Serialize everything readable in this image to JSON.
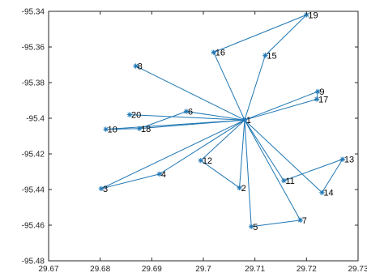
{
  "chart_data": {
    "type": "scatter",
    "title": "",
    "xlabel": "",
    "ylabel": "",
    "xlim": [
      29.67,
      29.73
    ],
    "ylim": [
      -95.48,
      -95.34
    ],
    "xticks": [
      29.67,
      29.68,
      29.69,
      29.7,
      29.71,
      29.72,
      29.73
    ],
    "yticks": [
      -95.48,
      -95.46,
      -95.44,
      -95.42,
      -95.4,
      -95.38,
      -95.36,
      -95.34
    ],
    "xtick_labels": [
      "29.67",
      "29.68",
      "29.69",
      "29.7",
      "29.71",
      "29.72",
      "29.73"
    ],
    "ytick_labels": [
      "-95.48",
      "-95.46",
      "-95.44",
      "-95.42",
      "-95.4",
      "-95.38",
      "-95.36",
      "-95.34"
    ],
    "grid": false,
    "marker": "*",
    "colors": {
      "line": "#1f77b4",
      "marker": "#1f77b4",
      "axes": "#262626"
    },
    "nodes": [
      {
        "id": "1",
        "x": 29.708,
        "y": -95.401
      },
      {
        "id": "2",
        "x": 29.707,
        "y": -95.439
      },
      {
        "id": "4",
        "x": 29.6915,
        "y": -95.4313
      },
      {
        "id": "5",
        "x": 29.7093,
        "y": -95.4608
      },
      {
        "id": "6",
        "x": 29.6967,
        "y": -95.3962
      },
      {
        "id": "7",
        "x": 29.7188,
        "y": -95.4572
      },
      {
        "id": "8",
        "x": 29.6869,
        "y": -95.3707
      },
      {
        "id": "9",
        "x": 29.7222,
        "y": -95.385
      },
      {
        "id": "10",
        "x": 29.6811,
        "y": -95.4062
      },
      {
        "id": "11",
        "x": 29.7156,
        "y": -95.435
      },
      {
        "id": "12",
        "x": 29.6995,
        "y": -95.4237
      },
      {
        "id": "13",
        "x": 29.727,
        "y": -95.423
      },
      {
        "id": "14",
        "x": 29.723,
        "y": -95.4417
      },
      {
        "id": "15",
        "x": 29.712,
        "y": -95.3647
      },
      {
        "id": "16",
        "x": 29.702,
        "y": -95.363
      },
      {
        "id": "17",
        "x": 29.722,
        "y": -95.3893
      },
      {
        "id": "18",
        "x": 29.6876,
        "y": -95.4058
      },
      {
        "id": "19",
        "x": 29.72,
        "y": -95.342
      },
      {
        "id": "20",
        "x": 29.6857,
        "y": -95.398
      },
      {
        "id": "3",
        "x": 29.6802,
        "y": -95.4395
      }
    ],
    "links": [
      [
        "1",
        "2"
      ],
      [
        "1",
        "3"
      ],
      [
        "1",
        "4"
      ],
      [
        "1",
        "5"
      ],
      [
        "1",
        "6"
      ],
      [
        "1",
        "7"
      ],
      [
        "1",
        "8"
      ],
      [
        "1",
        "9"
      ],
      [
        "1",
        "10"
      ],
      [
        "1",
        "11"
      ],
      [
        "1",
        "12"
      ],
      [
        "1",
        "14"
      ],
      [
        "1",
        "15"
      ],
      [
        "1",
        "16"
      ],
      [
        "1",
        "17"
      ],
      [
        "1",
        "18"
      ],
      [
        "1",
        "20"
      ],
      [
        "2",
        "12"
      ],
      [
        "3",
        "4"
      ],
      [
        "5",
        "7"
      ],
      [
        "6",
        "18"
      ],
      [
        "9",
        "17"
      ],
      [
        "10",
        "18"
      ],
      [
        "11",
        "13"
      ],
      [
        "13",
        "14"
      ],
      [
        "15",
        "19"
      ],
      [
        "16",
        "19"
      ]
    ]
  }
}
